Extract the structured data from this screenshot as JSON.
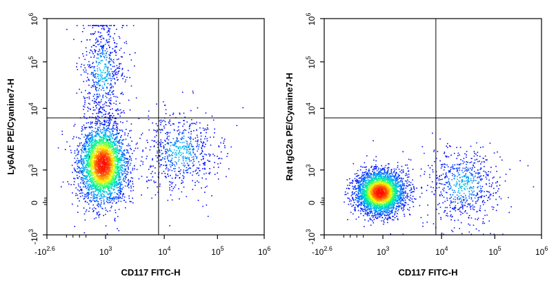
{
  "chart_data": [
    {
      "type": "scatter",
      "subtype": "flow-cytometry-density-dot-plot",
      "xlabel": "CD117 FITC-H",
      "ylabel": "Ly6A/E PE/Cyanine7-H",
      "x_scale": "biexponential",
      "y_scale": "biexponential",
      "x_ticks": [
        {
          "base": "-10",
          "exp": "2.6"
        },
        {
          "base": "10",
          "exp": "3"
        },
        {
          "base": "10",
          "exp": "4"
        },
        {
          "base": "10",
          "exp": "5"
        },
        {
          "base": "10",
          "exp": "6"
        }
      ],
      "y_ticks": [
        {
          "base": "-10",
          "exp": "3"
        },
        {
          "base": "0",
          "exp": ""
        },
        {
          "base": "10",
          "exp": "3"
        },
        {
          "base": "10",
          "exp": "4"
        },
        {
          "base": "10",
          "exp": "5"
        },
        {
          "base": "10",
          "exp": "6"
        }
      ],
      "quadrant_gate": {
        "x": 8000,
        "y": 7000
      },
      "populations": [
        {
          "name": "main",
          "x_center_log": 2.9,
          "y_center_log": 3.1,
          "density": "high"
        },
        {
          "name": "upper",
          "x_center_log": 2.9,
          "y_center_log": 4.8,
          "density": "low"
        },
        {
          "name": "right",
          "x_center_log": 4.3,
          "y_center_log": 3.3,
          "density": "low"
        }
      ],
      "color_scale": [
        "#0000ff",
        "#00b0ff",
        "#00ff80",
        "#ffff00",
        "#ff6000",
        "#ff0000"
      ],
      "grid": false
    },
    {
      "type": "scatter",
      "subtype": "flow-cytometry-density-dot-plot",
      "xlabel": "CD117 FITC-H",
      "ylabel": "Rat IgG2a PE/Cyanine7-H",
      "x_scale": "biexponential",
      "y_scale": "biexponential",
      "x_ticks": [
        {
          "base": "-10",
          "exp": "2.6"
        },
        {
          "base": "10",
          "exp": "3"
        },
        {
          "base": "10",
          "exp": "4"
        },
        {
          "base": "10",
          "exp": "5"
        },
        {
          "base": "10",
          "exp": "6"
        }
      ],
      "y_ticks": [
        {
          "base": "-10",
          "exp": "3"
        },
        {
          "base": "0",
          "exp": ""
        },
        {
          "base": "10",
          "exp": "3"
        },
        {
          "base": "10",
          "exp": "4"
        },
        {
          "base": "10",
          "exp": "5"
        },
        {
          "base": "10",
          "exp": "6"
        }
      ],
      "quadrant_gate": {
        "x": 8000,
        "y": 7000
      },
      "populations": [
        {
          "name": "main",
          "x_center_log": 2.9,
          "y_center_log": 2.4,
          "density": "high"
        },
        {
          "name": "right",
          "x_center_log": 4.4,
          "y_center_log": 2.6,
          "density": "low"
        }
      ],
      "color_scale": [
        "#0000ff",
        "#00b0ff",
        "#00ff80",
        "#ffff00",
        "#ff6000",
        "#ff0000"
      ],
      "grid": false
    }
  ]
}
